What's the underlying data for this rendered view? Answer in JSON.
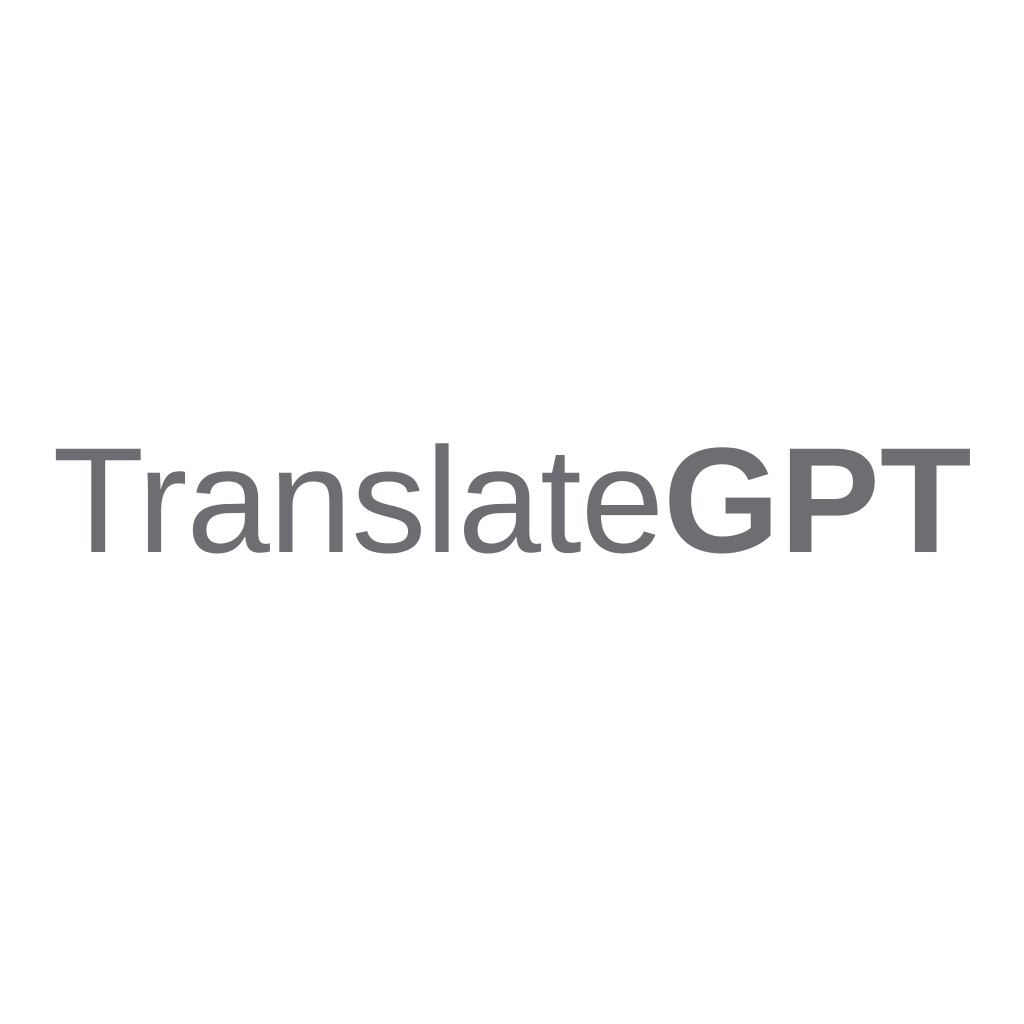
{
  "logo": {
    "text_regular": "Translate",
    "text_bold": "GPT",
    "color": "#6d6e71",
    "background": "#ffffff"
  }
}
